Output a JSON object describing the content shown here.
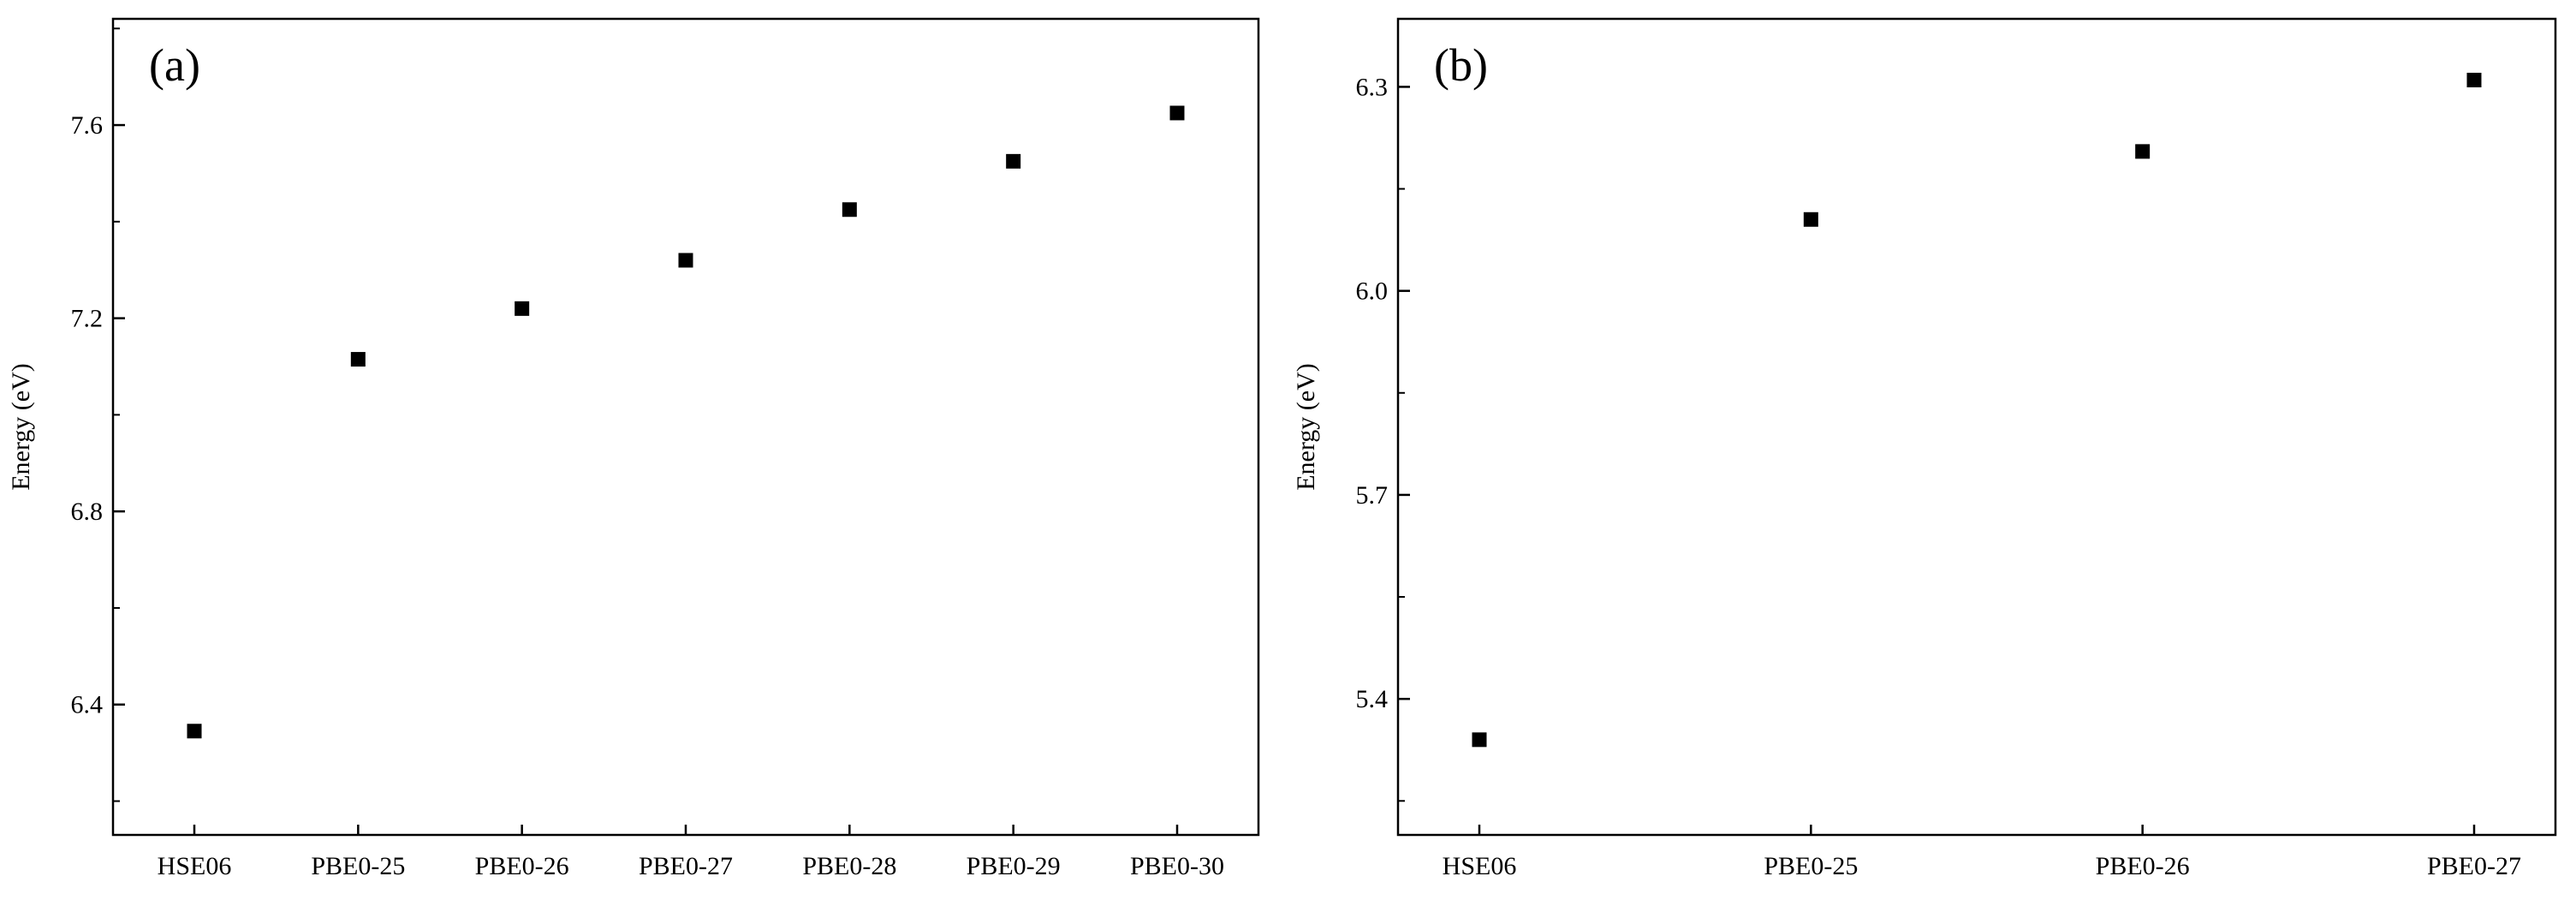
{
  "chart_data": [
    {
      "type": "scatter",
      "panel_label": "(a)",
      "title": "",
      "xlabel": "",
      "ylabel": "Energy (eV)",
      "categories": [
        "HSE06",
        "PBE0-25",
        "PBE0-26",
        "PBE0-27",
        "PBE0-28",
        "PBE0-29",
        "PBE0-30"
      ],
      "values": [
        6.345,
        7.115,
        7.22,
        7.32,
        7.425,
        7.525,
        7.625
      ],
      "ylim": [
        6.13,
        7.82
      ],
      "yticks": [
        6.4,
        6.8,
        7.2,
        7.6
      ],
      "ytick_labels": [
        "6.4",
        "6.8",
        "7.2",
        "7.6"
      ],
      "grid": false,
      "legend": "none",
      "marker": "square",
      "marker_color": "#000000"
    },
    {
      "type": "scatter",
      "panel_label": "(b)",
      "title": "",
      "xlabel": "",
      "ylabel": "Energy (eV)",
      "categories": [
        "HSE06",
        "PBE0-25",
        "PBE0-26",
        "PBE0-27"
      ],
      "values": [
        5.34,
        6.105,
        6.205,
        6.31
      ],
      "ylim": [
        5.2,
        6.4
      ],
      "yticks": [
        5.4,
        5.7,
        6.0,
        6.3
      ],
      "ytick_labels": [
        "5.4",
        "5.7",
        "6.0",
        "6.3"
      ],
      "grid": false,
      "legend": "none",
      "marker": "square",
      "marker_color": "#000000"
    }
  ]
}
